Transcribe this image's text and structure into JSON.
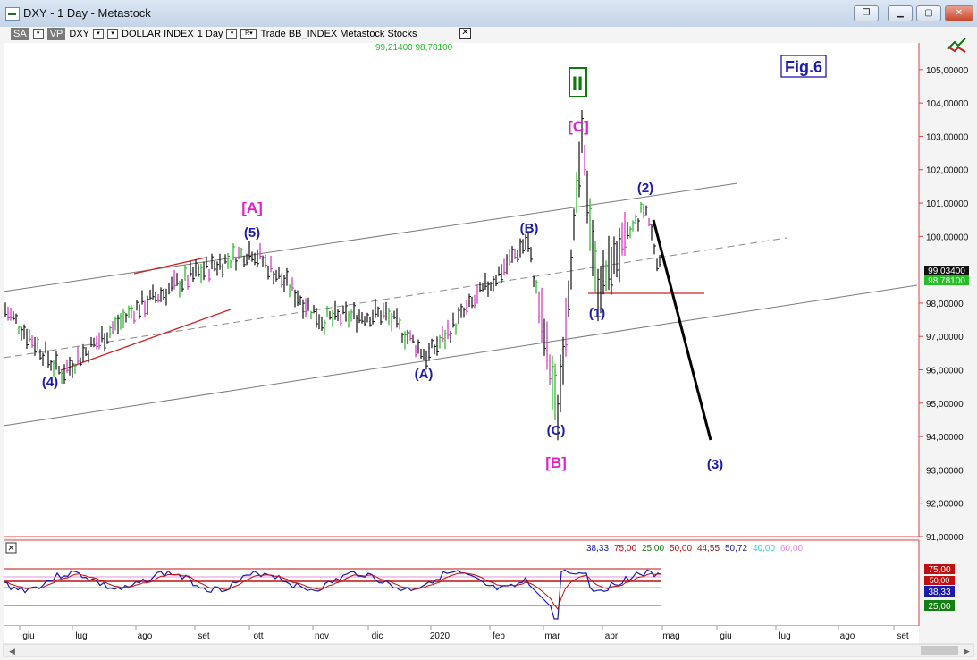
{
  "window": {
    "title": "DXY - 1 Day - Metastock",
    "buttons": [
      "restore-down",
      "minimize",
      "maximize",
      "close"
    ]
  },
  "toolbar": {
    "sa": "SA",
    "vp": "VP",
    "symbol": "DXY",
    "name": "DOLLAR INDEX",
    "period": "1 Day",
    "rest": "Trade  BB_INDEX  Metastock  Stocks",
    "close_glyph": "✕"
  },
  "cursor_values": "99,21400  98,78100",
  "fig_label": "Fig.6",
  "wave_labels": {
    "major": [
      "[A]",
      "[B]",
      "[C]"
    ],
    "intermediate": [
      "(4)",
      "(5)",
      "(A)",
      "(B)",
      "(C)",
      "(1)",
      "(2)",
      "(3)"
    ],
    "cycle": "II"
  },
  "price_tags": {
    "upper": "99,03400",
    "lower": "98,78100"
  },
  "indicator": {
    "values": [
      "38,33",
      "75,00",
      "25,00",
      "50,00",
      "44,55",
      "50,72",
      "40,00",
      "60,00"
    ],
    "value_colors": [
      "#1b1bb0",
      "#c01010",
      "#148014",
      "#c01010",
      "#8a2020",
      "#1b1bb0",
      "#33cccc",
      "#e090e0"
    ],
    "tags": [
      "75,00",
      "50,00",
      "38,33",
      "25,00"
    ],
    "close_glyph": "✕"
  },
  "chart_data": {
    "type": "line",
    "title": "DXY - 1 Day",
    "y_axis_labels": [
      "105,00000",
      "104,00000",
      "103,00000",
      "102,00000",
      "101,00000",
      "100,00000",
      "98,00000",
      "97,00000",
      "96,00000",
      "95,00000",
      "94,00000",
      "93,00000",
      "92,00000",
      "91,00000"
    ],
    "ylim": [
      91,
      105.8
    ],
    "x_axis_labels": [
      "giu",
      "lug",
      "ago",
      "set",
      "ott",
      "nov",
      "dic",
      "2020",
      "feb",
      "mar",
      "apr",
      "mag",
      "giu",
      "lug",
      "ago",
      "set"
    ],
    "price_path": [
      {
        "t": "giu 2019",
        "v": 97.8
      },
      {
        "t": "fine giu",
        "v": 96.8
      },
      {
        "t": "lug (4)",
        "v": 95.9
      },
      {
        "t": "ago",
        "v": 97.8
      },
      {
        "t": "set",
        "v": 98.9
      },
      {
        "t": "ott (5)",
        "v": 99.6
      },
      {
        "t": "nov",
        "v": 97.5
      },
      {
        "t": "dic",
        "v": 97.7
      },
      {
        "t": "gen (A)",
        "v": 96.4
      },
      {
        "t": "feb (B)",
        "v": 99.9
      },
      {
        "t": "mar (C)",
        "v": 94.7
      },
      {
        "t": "mar [C]",
        "v": 102.9
      },
      {
        "t": "apr (1)",
        "v": 98.4
      },
      {
        "t": "apr (2)",
        "v": 100.9
      },
      {
        "t": "ultimo",
        "v": 98.8
      }
    ],
    "projection": [
      {
        "t": "apr (2)",
        "v": 100.9
      },
      {
        "t": "giu (3)",
        "v": 93.8
      }
    ]
  }
}
